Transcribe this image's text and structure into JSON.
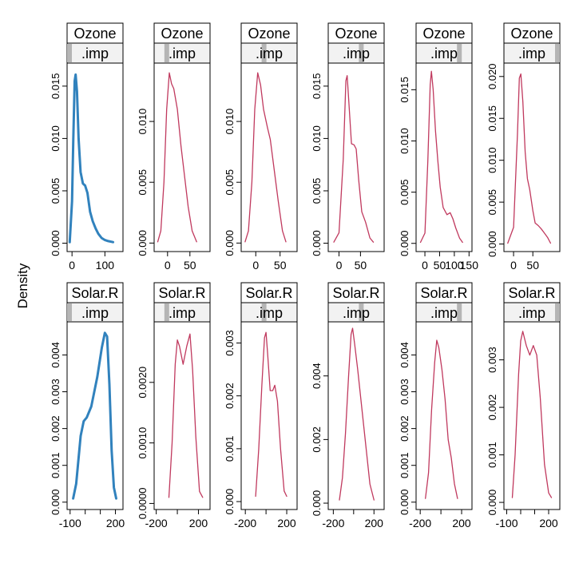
{
  "ylabel": "Density",
  "colors": {
    "observed": "#3182bd",
    "imputed": "#c0395e",
    "strip_bg": "#f2f2f2",
    "strip_bar": "#b5b5b5"
  },
  "chart_data": [
    {
      "variable": "Ozone",
      "type": "line",
      "strip_top": "Ozone",
      "strip_bottom": ".imp",
      "x_ticks": [
        0,
        50,
        100,
        150
      ],
      "panels": [
        {
          "imp": 0,
          "strip_bar": 0.0,
          "ylim": [
            -0.0008,
            0.0172
          ],
          "y_ticks": [
            0,
            0.005,
            0.01,
            0.015
          ],
          "y_labels": [
            "0.000",
            "0.005",
            "0.010",
            "0.015"
          ],
          "x_ticks": [
            0,
            100
          ],
          "x_labels": [
            "0",
            "100"
          ],
          "points": [
            [
              -7,
              0.0001
            ],
            [
              0,
              0.004
            ],
            [
              4,
              0.01
            ],
            [
              8,
              0.0155
            ],
            [
              11,
              0.0161
            ],
            [
              15,
              0.0145
            ],
            [
              20,
              0.01
            ],
            [
              26,
              0.0068
            ],
            [
              33,
              0.0057
            ],
            [
              40,
              0.0055
            ],
            [
              47,
              0.0048
            ],
            [
              55,
              0.003
            ],
            [
              63,
              0.0021
            ],
            [
              72,
              0.0014
            ],
            [
              80,
              0.0009
            ],
            [
              90,
              0.0005
            ],
            [
              100,
              0.0003
            ],
            [
              110,
              0.0002
            ],
            [
              125,
              0.0001
            ]
          ]
        },
        {
          "imp": 1,
          "strip_bar": 0.2,
          "ylim": [
            -0.0007,
            0.0148
          ],
          "y_ticks": [
            0,
            0.005,
            0.01
          ],
          "y_labels": [
            "0.000",
            "0.005",
            "0.010"
          ],
          "x_ticks": [
            0,
            50
          ],
          "x_labels": [
            "0",
            "50"
          ],
          "points": [
            [
              -22,
              0.0001
            ],
            [
              -15,
              0.001
            ],
            [
              -8,
              0.005
            ],
            [
              -2,
              0.011
            ],
            [
              4,
              0.014
            ],
            [
              9,
              0.0131
            ],
            [
              14,
              0.0127
            ],
            [
              22,
              0.011
            ],
            [
              30,
              0.008
            ],
            [
              38,
              0.0055
            ],
            [
              46,
              0.003
            ],
            [
              55,
              0.001
            ],
            [
              65,
              0.0001
            ]
          ]
        },
        {
          "imp": 2,
          "strip_bar": 0.4,
          "ylim": [
            -0.0007,
            0.0148
          ],
          "y_ticks": [
            0,
            0.005,
            0.01
          ],
          "y_labels": [
            "0.000",
            "0.005",
            "0.010"
          ],
          "x_ticks": [
            0,
            50
          ],
          "x_labels": [
            "0",
            "50"
          ],
          "points": [
            [
              -22,
              0.0001
            ],
            [
              -15,
              0.001
            ],
            [
              -8,
              0.005
            ],
            [
              -2,
              0.011
            ],
            [
              4,
              0.014
            ],
            [
              10,
              0.013
            ],
            [
              16,
              0.011
            ],
            [
              24,
              0.0095
            ],
            [
              30,
              0.0085
            ],
            [
              38,
              0.006
            ],
            [
              46,
              0.0035
            ],
            [
              55,
              0.001
            ],
            [
              62,
              0.0001
            ]
          ]
        },
        {
          "imp": 3,
          "strip_bar": 0.6,
          "ylim": [
            -0.0008,
            0.0172
          ],
          "y_ticks": [
            0,
            0.005,
            0.01,
            0.015
          ],
          "y_labels": [
            "0.000",
            "0.005",
            "0.010",
            "0.015"
          ],
          "x_ticks": [
            0,
            50
          ],
          "x_labels": [
            "0",
            "50"
          ],
          "points": [
            [
              -12,
              0.0001
            ],
            [
              0,
              0.001
            ],
            [
              10,
              0.008
            ],
            [
              16,
              0.0155
            ],
            [
              19,
              0.016
            ],
            [
              23,
              0.0135
            ],
            [
              29,
              0.0095
            ],
            [
              35,
              0.0094
            ],
            [
              40,
              0.009
            ],
            [
              46,
              0.006
            ],
            [
              53,
              0.003
            ],
            [
              62,
              0.002
            ],
            [
              72,
              0.0005
            ],
            [
              80,
              0.0001
            ]
          ]
        },
        {
          "imp": 4,
          "strip_bar": 0.8,
          "ylim": [
            -0.0008,
            0.0176
          ],
          "y_ticks": [
            0,
            0.005,
            0.01,
            0.015
          ],
          "y_labels": [
            "0.000",
            "0.005",
            "0.010",
            "0.015"
          ],
          "x_ticks": [
            0,
            50,
            100,
            150
          ],
          "x_labels": [
            "0",
            "50",
            "100",
            "150"
          ],
          "points": [
            [
              -15,
              0.0001
            ],
            [
              0,
              0.001
            ],
            [
              10,
              0.008
            ],
            [
              18,
              0.0155
            ],
            [
              22,
              0.0168
            ],
            [
              28,
              0.015
            ],
            [
              36,
              0.011
            ],
            [
              44,
              0.008
            ],
            [
              52,
              0.0055
            ],
            [
              62,
              0.0035
            ],
            [
              75,
              0.0028
            ],
            [
              86,
              0.003
            ],
            [
              95,
              0.0024
            ],
            [
              105,
              0.0015
            ],
            [
              118,
              0.0005
            ],
            [
              128,
              0.0001
            ]
          ]
        },
        {
          "imp": 5,
          "strip_bar": 1.0,
          "ylim": [
            -0.0009,
            0.0216
          ],
          "y_ticks": [
            0,
            0.005,
            0.01,
            0.015,
            0.02
          ],
          "y_labels": [
            "0.000",
            "0.005",
            "0.010",
            "0.015",
            "0.020"
          ],
          "x_ticks": [
            0,
            50
          ],
          "x_labels": [
            "0",
            "50"
          ],
          "points": [
            [
              -15,
              0.0001
            ],
            [
              0,
              0.002
            ],
            [
              10,
              0.013
            ],
            [
              15,
              0.0198
            ],
            [
              19,
              0.0203
            ],
            [
              24,
              0.017
            ],
            [
              30,
              0.011
            ],
            [
              36,
              0.0078
            ],
            [
              42,
              0.0065
            ],
            [
              50,
              0.004
            ],
            [
              56,
              0.0025
            ],
            [
              64,
              0.0022
            ],
            [
              72,
              0.0018
            ],
            [
              80,
              0.0013
            ],
            [
              88,
              0.0008
            ],
            [
              96,
              0.0001
            ]
          ]
        }
      ]
    },
    {
      "variable": "Solar.R",
      "type": "line",
      "strip_top": "Solar.R",
      "strip_bottom": ".imp",
      "x_ticks": [
        -100,
        0,
        100,
        200
      ],
      "panels": [
        {
          "imp": 0,
          "strip_bar": 0.0,
          "ylim": [
            -0.0002,
            0.0049
          ],
          "y_ticks": [
            0,
            0.001,
            0.002,
            0.003,
            0.004
          ],
          "y_labels": [
            "0.000",
            "0.001",
            "0.002",
            "0.003",
            "0.004"
          ],
          "x_ticks": [
            -100,
            0,
            100,
            200
          ],
          "x_labels": [
            "-100",
            "",
            "",
            "200"
          ],
          "points": [
            [
              -80,
              0.0001
            ],
            [
              -60,
              0.0005
            ],
            [
              -30,
              0.0018
            ],
            [
              -10,
              0.0022
            ],
            [
              10,
              0.0023
            ],
            [
              40,
              0.0026
            ],
            [
              80,
              0.0034
            ],
            [
              110,
              0.0042
            ],
            [
              130,
              0.0046
            ],
            [
              145,
              0.0045
            ],
            [
              160,
              0.0032
            ],
            [
              175,
              0.0014
            ],
            [
              190,
              0.0004
            ],
            [
              205,
              0.0001
            ]
          ]
        },
        {
          "imp": 1,
          "strip_bar": 0.2,
          "ylim": [
            -0.0001,
            0.003
          ],
          "y_ticks": [
            0,
            0.001,
            0.002
          ],
          "y_labels": [
            "0.0000",
            "0.0010",
            "0.0020"
          ],
          "x_ticks": [
            -200,
            0,
            200
          ],
          "x_labels": [
            "-200",
            "",
            "200"
          ],
          "points": [
            [
              -80,
              0.0001
            ],
            [
              -50,
              0.001
            ],
            [
              -20,
              0.0023
            ],
            [
              0,
              0.0027
            ],
            [
              20,
              0.0026
            ],
            [
              55,
              0.0023
            ],
            [
              90,
              0.0026
            ],
            [
              120,
              0.0028
            ],
            [
              145,
              0.0022
            ],
            [
              175,
              0.0011
            ],
            [
              210,
              0.0002
            ],
            [
              240,
              0.0001
            ]
          ]
        },
        {
          "imp": 2,
          "strip_bar": 0.4,
          "ylim": [
            -0.00015,
            0.0034
          ],
          "y_ticks": [
            0,
            0.001,
            0.002,
            0.003
          ],
          "y_labels": [
            "0.000",
            "0.001",
            "0.002",
            "0.003"
          ],
          "x_ticks": [
            -200,
            0,
            200
          ],
          "x_labels": [
            "-200",
            "",
            "200"
          ],
          "points": [
            [
              -100,
              0.0001
            ],
            [
              -70,
              0.001
            ],
            [
              -40,
              0.0022
            ],
            [
              -15,
              0.0031
            ],
            [
              0,
              0.0032
            ],
            [
              15,
              0.0028
            ],
            [
              40,
              0.0021
            ],
            [
              65,
              0.0021
            ],
            [
              85,
              0.0022
            ],
            [
              110,
              0.0019
            ],
            [
              140,
              0.001
            ],
            [
              175,
              0.0002
            ],
            [
              200,
              0.0001
            ]
          ]
        },
        {
          "imp": 3,
          "strip_bar": 0.6,
          "ylim": [
            -0.0002,
            0.0057
          ],
          "y_ticks": [
            0,
            0.002,
            0.004
          ],
          "y_labels": [
            "0.000",
            "0.002",
            "0.004"
          ],
          "x_ticks": [
            -200,
            0,
            200
          ],
          "x_labels": [
            "-200",
            "",
            "200"
          ],
          "points": [
            [
              -140,
              0.0001
            ],
            [
              -110,
              0.0008
            ],
            [
              -80,
              0.0022
            ],
            [
              -50,
              0.004
            ],
            [
              -25,
              0.0053
            ],
            [
              -10,
              0.0055
            ],
            [
              10,
              0.005
            ],
            [
              40,
              0.0042
            ],
            [
              80,
              0.003
            ],
            [
              120,
              0.0018
            ],
            [
              160,
              0.0006
            ],
            [
              200,
              0.0001
            ]
          ]
        },
        {
          "imp": 4,
          "strip_bar": 0.8,
          "ylim": [
            -0.0002,
            0.0049
          ],
          "y_ticks": [
            0,
            0.001,
            0.002,
            0.003,
            0.004
          ],
          "y_labels": [
            "0.000",
            "0.001",
            "0.002",
            "0.003",
            "0.004"
          ],
          "x_ticks": [
            -200,
            0,
            200
          ],
          "x_labels": [
            "-200",
            "",
            "200"
          ],
          "points": [
            [
              -150,
              0.0001
            ],
            [
              -120,
              0.0008
            ],
            [
              -90,
              0.0025
            ],
            [
              -60,
              0.0038
            ],
            [
              -40,
              0.0044
            ],
            [
              -20,
              0.0042
            ],
            [
              10,
              0.0036
            ],
            [
              40,
              0.0028
            ],
            [
              70,
              0.0017
            ],
            [
              100,
              0.0012
            ],
            [
              130,
              0.0005
            ],
            [
              160,
              0.0001
            ]
          ]
        },
        {
          "imp": 5,
          "strip_bar": 1.0,
          "ylim": [
            -0.00015,
            0.0038
          ],
          "y_ticks": [
            0,
            0.001,
            0.002,
            0.003
          ],
          "y_labels": [
            "0.000",
            "0.001",
            "0.002",
            "0.003"
          ],
          "x_ticks": [
            -100,
            0,
            100,
            200
          ],
          "x_labels": [
            "-100",
            "",
            "",
            "200"
          ],
          "points": [
            [
              -60,
              0.0001
            ],
            [
              -40,
              0.001
            ],
            [
              -15,
              0.0027
            ],
            [
              0,
              0.0034
            ],
            [
              15,
              0.0036
            ],
            [
              40,
              0.0033
            ],
            [
              65,
              0.0031
            ],
            [
              90,
              0.0033
            ],
            [
              115,
              0.0031
            ],
            [
              140,
              0.0022
            ],
            [
              170,
              0.0008
            ],
            [
              200,
              0.0002
            ],
            [
              220,
              0.0001
            ]
          ]
        }
      ]
    }
  ]
}
